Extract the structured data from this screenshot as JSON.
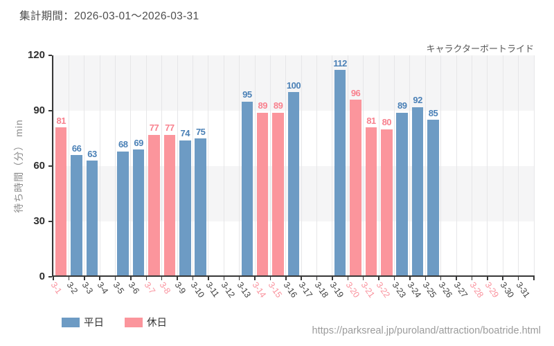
{
  "page": {
    "report_period": "集計期間：2026-03-01～2026-03-31",
    "attraction_name": "キャラクターボートライド",
    "source_url": "https://parksreal.jp/puroland/attraction/boatride.html"
  },
  "legend": {
    "items": [
      {
        "label": "平日",
        "color": "#6d9bc4"
      },
      {
        "label": "休日",
        "color": "#fb959c"
      }
    ]
  },
  "colors": {
    "weekday_bar": "#6d9bc4",
    "holiday_bar": "#fb959c",
    "weekday_value_label": "#4a80b6",
    "holiday_value_label": "#f8818e",
    "weekday_tick_label": "#3f3f3f",
    "holiday_tick_label": "#f9919c",
    "band_gray": "#f5f5f6",
    "gridline": "#e6e6e8",
    "axis": "#373737"
  },
  "chart_data": {
    "type": "bar",
    "title": "キャラクターボートライド",
    "subtitle": "集計期間：2026-03-01～2026-03-31",
    "xlabel": "",
    "ylabel": "待ち時間（分） min",
    "ylim": [
      0,
      120
    ],
    "yticks": [
      0,
      30,
      60,
      90,
      120
    ],
    "grid": "vertical gridlines with alternating horizontal gray bands (30-60, 90-120)",
    "legend_position": "bottom-left",
    "categories": [
      "3-1",
      "3-2",
      "3-3",
      "3-4",
      "3-5",
      "3-6",
      "3-7",
      "3-8",
      "3-9",
      "3-10",
      "3-11",
      "3-12",
      "3-13",
      "3-14",
      "3-15",
      "3-16",
      "3-17",
      "3-18",
      "3-19",
      "3-20",
      "3-21",
      "3-22",
      "3-23",
      "3-24",
      "3-25",
      "3-26",
      "3-27",
      "3-28",
      "3-29",
      "3-30",
      "3-31"
    ],
    "holiday_dates": [
      "3-1",
      "3-7",
      "3-8",
      "3-14",
      "3-15",
      "3-20",
      "3-21",
      "3-22",
      "3-28",
      "3-29"
    ],
    "series": [
      {
        "name": "平日",
        "color": "#6d9bc4",
        "label_color": "#4a80b6",
        "values": [
          null,
          66,
          63,
          null,
          68,
          69,
          null,
          null,
          74,
          75,
          null,
          null,
          95,
          null,
          null,
          100,
          null,
          null,
          112,
          null,
          null,
          null,
          89,
          92,
          85,
          null,
          null,
          null,
          null,
          null,
          null
        ]
      },
      {
        "name": "休日",
        "color": "#fb959c",
        "label_color": "#f8818e",
        "values": [
          81,
          null,
          null,
          null,
          null,
          null,
          77,
          77,
          null,
          null,
          null,
          null,
          null,
          89,
          89,
          null,
          null,
          null,
          null,
          96,
          81,
          80,
          null,
          null,
          null,
          null,
          null,
          null,
          null,
          null,
          null
        ]
      }
    ]
  }
}
